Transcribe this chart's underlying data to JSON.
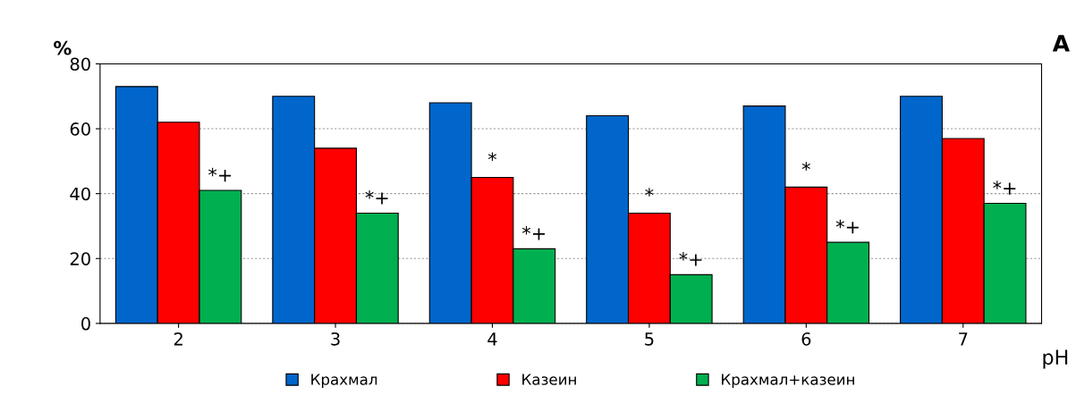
{
  "chart_data": {
    "type": "bar",
    "categories": [
      "2",
      "3",
      "4",
      "5",
      "6",
      "7"
    ],
    "series": [
      {
        "name": "Крахмал",
        "color": "#0066cc",
        "values": [
          73,
          70,
          68,
          64,
          67,
          70
        ]
      },
      {
        "name": "Казеин",
        "color": "#ff0000",
        "values": [
          62,
          54,
          45,
          34,
          42,
          57
        ]
      },
      {
        "name": "Крахмал+казеин",
        "color": "#00b050",
        "values": [
          41,
          34,
          23,
          15,
          25,
          37
        ]
      }
    ],
    "ylabel": "%",
    "xlabel": "pH",
    "ylim": [
      0,
      80
    ],
    "yticks": [
      0,
      20,
      40,
      60,
      80
    ],
    "grid": "y",
    "legend": "bottom",
    "annotations": [
      "A",
      "*+",
      "*+",
      "*+",
      "*+",
      "*+",
      "*+",
      {
        "text": "*",
        "x": "4",
        "y": 45
      },
      {
        "text": "*",
        "x": "5",
        "y": 34
      },
      {
        "text": "*",
        "x": "6",
        "y": 42
      }
    ]
  }
}
